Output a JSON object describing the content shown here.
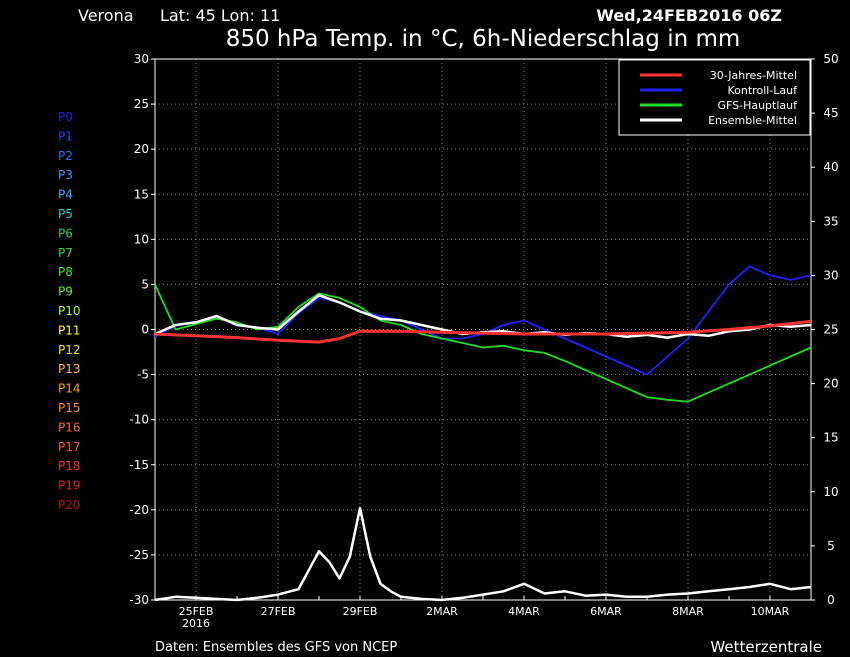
{
  "header": {
    "location": "Verona",
    "coords": "Lat: 45 Lon: 11",
    "run": "Wed,24FEB2016 06Z",
    "title": "850 hPa Temp. in °C, 6h-Niederschlag in mm"
  },
  "footer": {
    "source": "Daten: Ensembles des GFS von NCEP",
    "brand": "Wetterzentrale"
  },
  "members": [
    {
      "label": "P0",
      "color": "#2020e0"
    },
    {
      "label": "P1",
      "color": "#2040f0"
    },
    {
      "label": "P2",
      "color": "#3070ff"
    },
    {
      "label": "P3",
      "color": "#3399ff"
    },
    {
      "label": "P4",
      "color": "#33b0ff"
    },
    {
      "label": "P5",
      "color": "#33cccc"
    },
    {
      "label": "P6",
      "color": "#22cc66"
    },
    {
      "label": "P7",
      "color": "#22dd44"
    },
    {
      "label": "P8",
      "color": "#33ee33"
    },
    {
      "label": "P9",
      "color": "#66ee22"
    },
    {
      "label": "P10",
      "color": "#aaff11"
    },
    {
      "label": "P11",
      "color": "#ffff22"
    },
    {
      "label": "P12",
      "color": "#ffdd22"
    },
    {
      "label": "P13",
      "color": "#ffbb22"
    },
    {
      "label": "P14",
      "color": "#ff9922"
    },
    {
      "label": "P15",
      "color": "#ff8822"
    },
    {
      "label": "P16",
      "color": "#ff6622"
    },
    {
      "label": "P17",
      "color": "#ff5522"
    },
    {
      "label": "P18",
      "color": "#ee3322"
    },
    {
      "label": "P19",
      "color": "#dd2222"
    },
    {
      "label": "P20",
      "color": "#bb1111"
    }
  ],
  "chart_data": {
    "type": "line",
    "title": "850 hPa Temp. in °C, 6h-Niederschlag in mm",
    "x_ticks": [
      {
        "day": 1,
        "label": "25FEB"
      },
      {
        "day": 3,
        "label": "27FEB"
      },
      {
        "day": 5,
        "label": "29FEB"
      },
      {
        "day": 7,
        "label": "2MAR"
      },
      {
        "day": 9,
        "label": "4MAR"
      },
      {
        "day": 11,
        "label": "6MAR"
      },
      {
        "day": 13,
        "label": "8MAR"
      },
      {
        "day": 15,
        "label": "10MAR"
      }
    ],
    "x_sublabel": {
      "day": 1,
      "label": "2016"
    },
    "xlim": [
      0,
      16
    ],
    "left_axis": {
      "unit": "°C",
      "ylim": [
        -30,
        30
      ],
      "ticks": [
        -30,
        -25,
        -20,
        -15,
        -10,
        -5,
        0,
        5,
        10,
        15,
        20,
        25,
        30
      ]
    },
    "right_axis": {
      "unit": "mm",
      "ylim": [
        0,
        50
      ],
      "ticks": [
        0,
        5,
        10,
        15,
        20,
        25,
        30,
        35,
        40,
        45,
        50
      ]
    },
    "grid": true,
    "legend": {
      "position": "top-right",
      "entries": [
        {
          "name": "30-Jahres-Mittel",
          "color": "#ff3333"
        },
        {
          "name": "Kontroll-Lauf",
          "color": "#2222ff"
        },
        {
          "name": "GFS-Hauptlauf",
          "color": "#22dd22"
        },
        {
          "name": "Ensemble-Mittel",
          "color": "#ffffff"
        }
      ]
    },
    "series": [
      {
        "name": "30-Jahres-Mittel",
        "axis": "left",
        "color": "#ff3333",
        "x": [
          0,
          1,
          2,
          3,
          4,
          4.5,
          5,
          6,
          7,
          8,
          9,
          10,
          11,
          12,
          13,
          14,
          15,
          16
        ],
        "y": [
          -0.5,
          -0.7,
          -0.9,
          -1.2,
          -1.4,
          -1.0,
          -0.2,
          -0.2,
          -0.3,
          -0.4,
          -0.5,
          -0.5,
          -0.5,
          -0.4,
          -0.3,
          0.0,
          0.4,
          0.9
        ]
      },
      {
        "name": "Ensemble-Mittel",
        "axis": "left",
        "color": "#ffffff",
        "x": [
          0,
          0.5,
          1,
          1.5,
          2,
          2.5,
          3,
          3.5,
          4,
          4.5,
          5,
          5.5,
          6,
          6.5,
          7,
          7.5,
          8,
          8.5,
          9,
          9.5,
          10,
          10.5,
          11,
          11.5,
          12,
          12.5,
          13,
          13.5,
          14,
          14.5,
          15,
          15.5,
          16
        ],
        "y": [
          -0.5,
          0.5,
          0.8,
          1.5,
          0.5,
          0.2,
          0.0,
          2.0,
          3.8,
          3.0,
          2.0,
          1.2,
          1.0,
          0.5,
          0.0,
          -0.5,
          -0.3,
          -0.2,
          -0.5,
          -0.3,
          -0.6,
          -0.4,
          -0.5,
          -0.8,
          -0.6,
          -0.9,
          -0.5,
          -0.7,
          -0.2,
          0.0,
          0.5,
          0.3,
          0.5
        ]
      },
      {
        "name": "GFS-Hauptlauf",
        "axis": "left",
        "color": "#22dd22",
        "x": [
          0,
          0.5,
          1,
          1.5,
          2,
          2.5,
          3,
          3.5,
          4,
          4.5,
          5,
          5.5,
          6,
          6.5,
          7,
          7.5,
          8,
          8.5,
          9,
          9.5,
          10,
          10.5,
          11,
          11.5,
          12,
          12.5,
          13,
          13.5,
          14,
          14.5,
          15,
          15.5,
          16
        ],
        "y": [
          5.0,
          0.0,
          0.6,
          1.2,
          0.8,
          0.0,
          0.3,
          2.5,
          4.0,
          3.5,
          2.5,
          1.0,
          0.5,
          -0.5,
          -1.0,
          -1.5,
          -2.0,
          -1.8,
          -2.3,
          -2.6,
          -3.5,
          -4.5,
          -5.5,
          -6.5,
          -7.5,
          -7.8,
          -8.0,
          -7.0,
          -6.0,
          -5.0,
          -4.0,
          -3.0,
          -2.0
        ]
      },
      {
        "name": "Kontroll-Lauf",
        "axis": "left",
        "color": "#2222ff",
        "x": [
          0,
          0.5,
          1,
          1.5,
          2,
          2.5,
          3,
          3.5,
          4,
          4.5,
          5,
          5.5,
          6,
          6.5,
          7,
          7.5,
          8,
          8.5,
          9,
          9.5,
          10,
          10.5,
          11,
          11.5,
          12,
          12.5,
          13,
          13.5,
          14,
          14.5,
          15,
          15.5,
          16
        ],
        "y": [
          -0.8,
          0.4,
          0.8,
          1.4,
          0.6,
          0.2,
          -0.5,
          1.8,
          3.5,
          3.0,
          2.0,
          1.5,
          1.0,
          0.0,
          -1.0,
          -1.0,
          -0.5,
          0.5,
          1.0,
          0.0,
          -1.0,
          -2.0,
          -3.0,
          -4.0,
          -5.0,
          -3.0,
          -1.0,
          2.0,
          5.0,
          7.0,
          6.0,
          5.5,
          6.0
        ]
      },
      {
        "name": "Ensemble-Mittel Niederschlag",
        "axis": "right",
        "color": "#ffffff",
        "x": [
          0,
          0.5,
          1,
          1.5,
          2,
          2.5,
          3,
          3.5,
          4,
          4.25,
          4.5,
          4.75,
          5,
          5.25,
          5.5,
          5.75,
          6,
          6.5,
          7,
          7.5,
          8,
          8.5,
          9,
          9.5,
          10,
          10.5,
          11,
          11.5,
          12,
          12.5,
          13,
          13.5,
          14,
          14.5,
          15,
          15.5,
          16
        ],
        "y": [
          0,
          0.3,
          0.2,
          0.1,
          0,
          0.2,
          0.5,
          1.0,
          4.5,
          3.5,
          2.0,
          4.0,
          8.5,
          4.0,
          1.5,
          0.8,
          0.3,
          0.1,
          0,
          0.2,
          0.5,
          0.8,
          1.5,
          0.6,
          0.8,
          0.4,
          0.5,
          0.3,
          0.3,
          0.5,
          0.6,
          0.8,
          1.0,
          1.2,
          1.5,
          1.0,
          1.2
        ]
      }
    ]
  }
}
